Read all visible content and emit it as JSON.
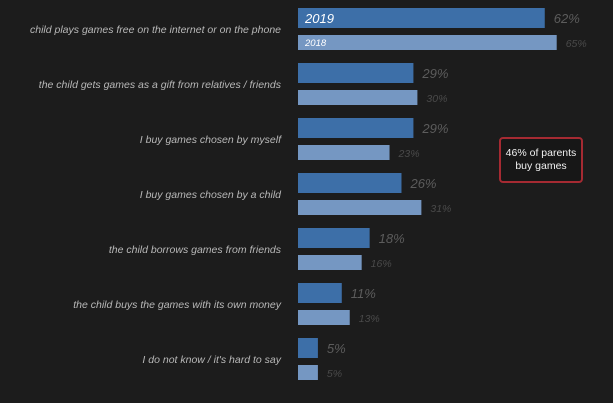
{
  "chart_data": {
    "type": "bar",
    "orientation": "horizontal",
    "categories": [
      "child plays games free on the internet or on the phone",
      "the child gets games as a gift from relatives / friends",
      "I buy games chosen by myself",
      "I buy games chosen by a child",
      "the child borrows games from friends",
      "the child buys the games with its own money",
      "I do not know / it's hard to say"
    ],
    "series": [
      {
        "name": "2019",
        "values": [
          62,
          29,
          29,
          26,
          18,
          11,
          5
        ],
        "labels": [
          "62%",
          "29%",
          "29%",
          "26%",
          "18%",
          "11%",
          "5%"
        ],
        "color": "#3d6fa8"
      },
      {
        "name": "2018",
        "values": [
          65,
          30,
          23,
          31,
          16,
          13,
          5
        ],
        "labels": [
          "65%",
          "30%",
          "23%",
          "31%",
          "16%",
          "13%",
          "5%"
        ],
        "color": "#7597c2"
      }
    ],
    "xlim": [
      0,
      70
    ],
    "grid": false,
    "legend": "inside-first-bars",
    "annotation": "46% of parents buy games",
    "colors": {
      "background": "#1c1c1c",
      "category_text": "#b8b8b8",
      "value_text_2019": "#5c5c5c",
      "value_text_2018": "#4a4a4a",
      "annotation_border": "#a52a32"
    }
  }
}
